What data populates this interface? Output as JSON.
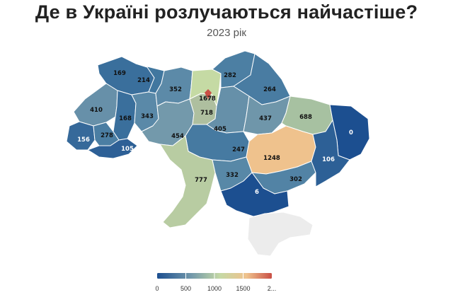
{
  "title": "Де в Україні розлучаються найчастіше?",
  "subtitle": "2023 рік",
  "chart_data": {
    "type": "choropleth",
    "regions": [
      {
        "value": "169",
        "fill": "#3a6f9c"
      },
      {
        "value": "214",
        "fill": "#41779f"
      },
      {
        "value": "410",
        "fill": "#6790a9"
      },
      {
        "value": "168",
        "fill": "#3a6f9c"
      },
      {
        "value": "343",
        "fill": "#5a89a8"
      },
      {
        "value": "352",
        "fill": "#5c8aa8"
      },
      {
        "value": "156",
        "fill": "#36699a"
      },
      {
        "value": "278",
        "fill": "#4b7ea3"
      },
      {
        "value": "105",
        "fill": "#2d6096"
      },
      {
        "value": "454",
        "fill": "#7399ab"
      },
      {
        "value": "718",
        "fill": "#aebf9f"
      },
      {
        "value": "1678",
        "fill": "#c5daa4"
      },
      {
        "value": "282",
        "fill": "#4c7fa3"
      },
      {
        "value": "264",
        "fill": "#497ca2"
      },
      {
        "value": "405",
        "fill": "#6690a9"
      },
      {
        "value": "437",
        "fill": "#6f96aa"
      },
      {
        "value": "688",
        "fill": "#a7c1a1"
      },
      {
        "value": "247",
        "fill": "#467aa1"
      },
      {
        "value": "1248",
        "fill": "#efc28d"
      },
      {
        "value": "0",
        "fill": "#1c4f90"
      },
      {
        "value": "777",
        "fill": "#b8cca2"
      },
      {
        "value": "332",
        "fill": "#5888a7"
      },
      {
        "value": "302",
        "fill": "#5283a5"
      },
      {
        "value": "106",
        "fill": "#2d6096"
      },
      {
        "value": "6",
        "fill": "#1c4f90"
      },
      {
        "value": "",
        "fill": "#ececec"
      }
    ],
    "legend": {
      "ticks": [
        "0",
        "500",
        "1000",
        "1500",
        "2..."
      ],
      "colors": [
        "#1c4f90",
        "#7399ab",
        "#c5d9a5",
        "#efc28d",
        "#c94f45"
      ]
    }
  }
}
